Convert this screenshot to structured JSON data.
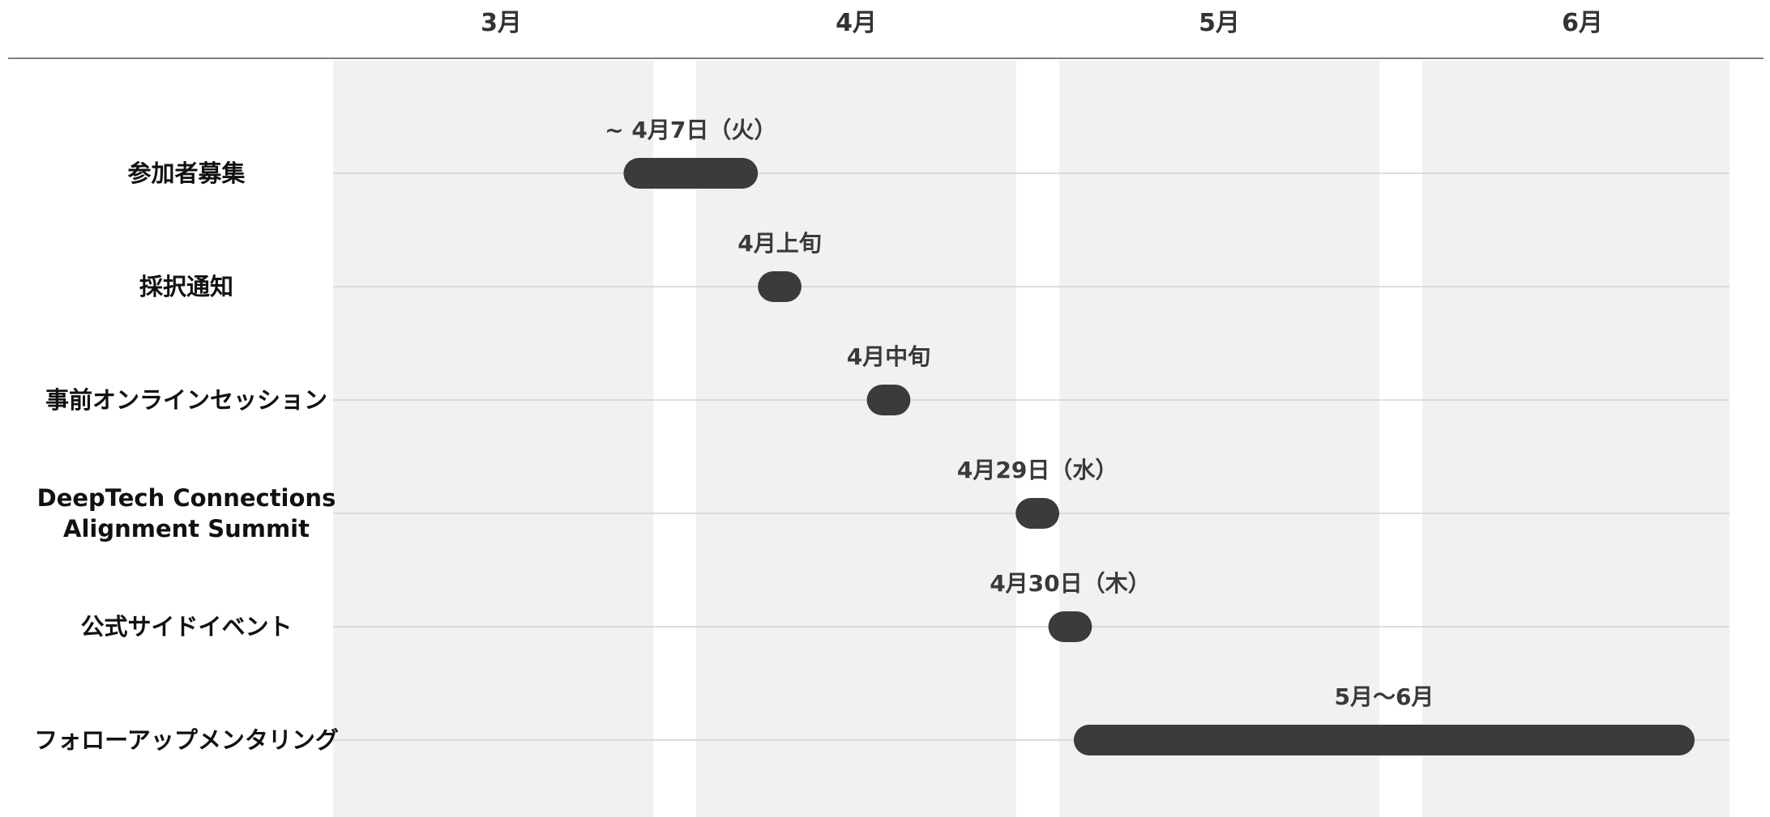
{
  "chart_data": {
    "type": "gantt",
    "months": [
      "3月",
      "4月",
      "5月",
      "6月"
    ],
    "grid": true,
    "colors": {
      "bar": "#3d3b3a",
      "month_band": "#f1f1f3",
      "row_line": "#d4d4d4",
      "header_line": "#555555"
    },
    "tasks": [
      {
        "name": [
          "参加者募集"
        ],
        "start": 1.8,
        "end": 2.17,
        "label": "~ 4月7日（火）"
      },
      {
        "name": [
          "採択通知"
        ],
        "start": 2.17,
        "end": 2.29,
        "label": "4月上旬"
      },
      {
        "name": [
          "事前オンラインセッション"
        ],
        "start": 2.47,
        "end": 2.59,
        "label": "4月中旬"
      },
      {
        "name": [
          "DeepTech Connections",
          "Alignment Summit"
        ],
        "start": 2.88,
        "end": 3.0,
        "label": "4月29日（水）"
      },
      {
        "name": [
          "公式サイドイベント"
        ],
        "start": 2.97,
        "end": 3.09,
        "label": "4月30日（木）"
      },
      {
        "name": [
          "フォローアップメンタリング"
        ],
        "start": 3.04,
        "end": 4.75,
        "label": "5月〜6月"
      }
    ]
  }
}
